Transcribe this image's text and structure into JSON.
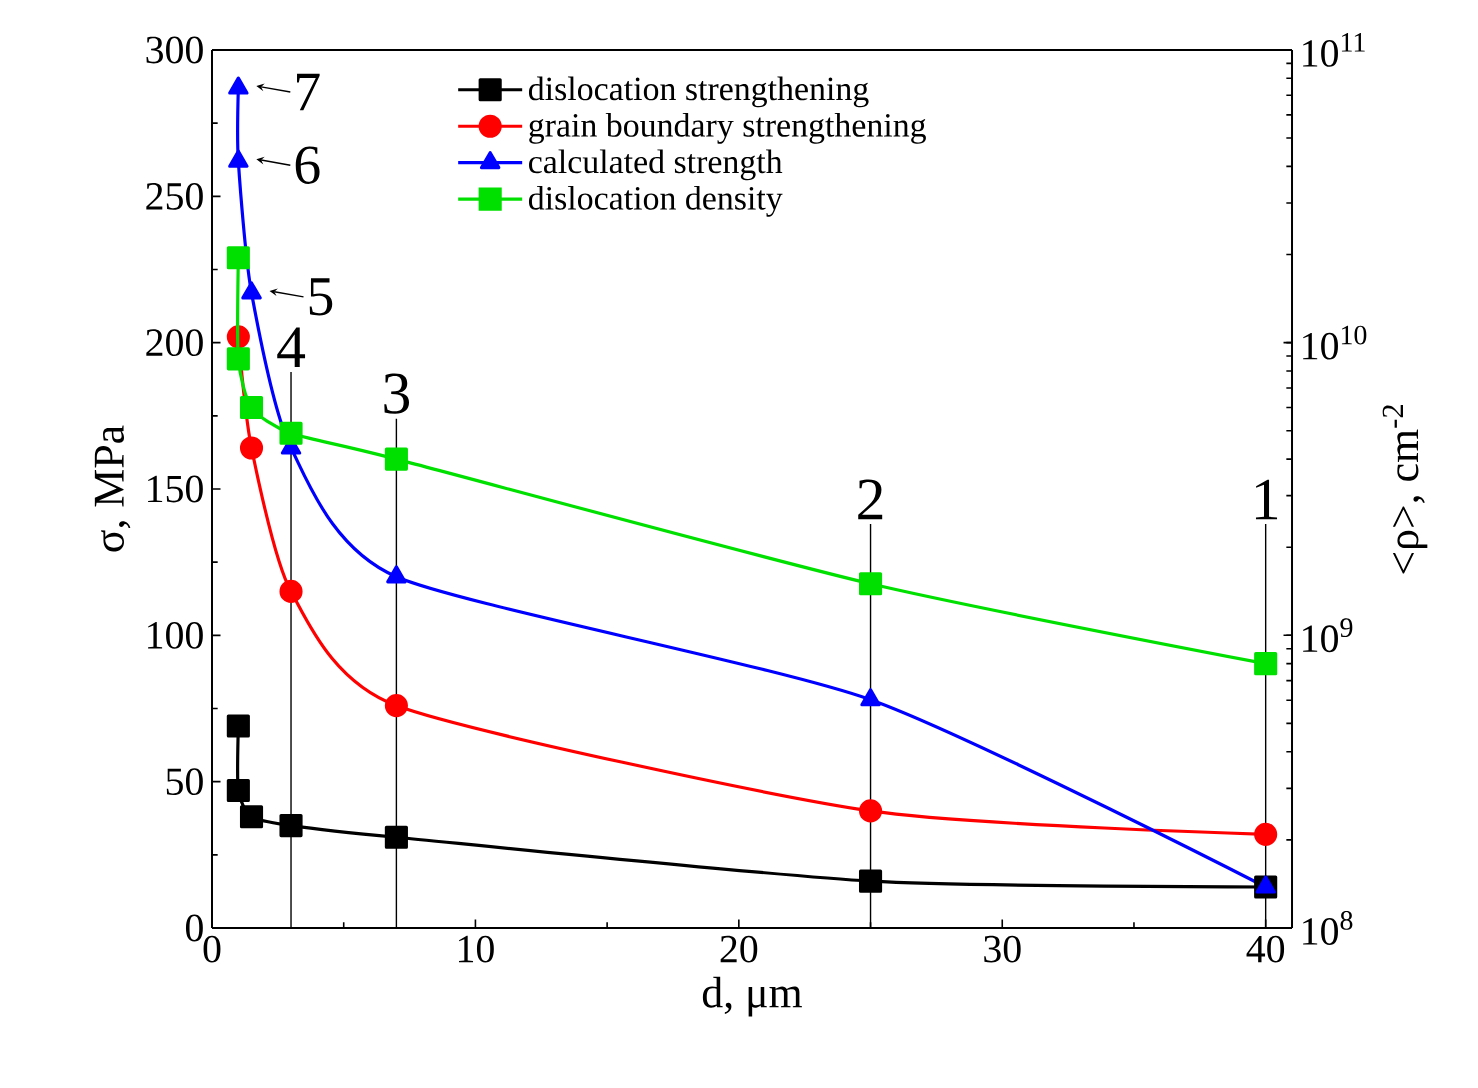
{
  "chart_data": {
    "type": "line",
    "xlabel": "d, μm",
    "ylabel": "σ, MPa",
    "y2label": "<ρ>, cm$^{-2}$",
    "xlim": [
      0,
      41
    ],
    "xticks": [
      0,
      10,
      20,
      30,
      40
    ],
    "ylim": [
      0,
      300
    ],
    "yticks": [
      0,
      50,
      100,
      150,
      200,
      250,
      300
    ],
    "y2lim": [
      100000000.0,
      100000000000.0
    ],
    "log": "y2",
    "y2ticks": [
      {
        "value": 100000000.0,
        "label": "10$^{8}$"
      },
      {
        "value": 1000000000.0,
        "label": "10$^{9}$"
      },
      {
        "value": 10000000000.0,
        "label": "10$^{10}$"
      },
      {
        "value": 100000000000.0,
        "label": "10$^{11}$"
      }
    ],
    "grid": false,
    "legend": "top",
    "line_style": "solid",
    "series": [
      {
        "name": "dislocation strengthening",
        "color": "#000000",
        "marker": "square",
        "x": [
          1,
          1,
          1.5,
          3,
          7,
          25,
          40
        ],
        "values": [
          69,
          47,
          38,
          35,
          31,
          16,
          14
        ]
      },
      {
        "name": "grain boundary strengthening",
        "color": "#ff0000",
        "marker": "circle",
        "x": [
          1,
          1.5,
          3,
          7,
          25,
          40
        ],
        "values": [
          202,
          164,
          115,
          76,
          40,
          32
        ]
      },
      {
        "name": "calculated strength",
        "color": "#0000ff",
        "marker": "triangle",
        "x": [
          1,
          1,
          1.5,
          3,
          7,
          25,
          40
        ],
        "values": [
          287,
          262,
          217,
          164,
          120,
          78,
          14
        ]
      },
      {
        "name": "dislocation density",
        "color": "#00e000",
        "marker": "square",
        "axis": "y2",
        "x": [
          1,
          1,
          1.5,
          3,
          7,
          25,
          40
        ],
        "values": [
          19500000000.0,
          8800000000.0,
          6000000000.0,
          4900000000.0,
          4000000000.0,
          1500000000.0,
          800000000.0
        ]
      }
    ],
    "ref_lines": [
      {
        "axis": "x",
        "value": 40,
        "color": "#000000"
      },
      {
        "axis": "x",
        "value": 25,
        "color": "#000000"
      },
      {
        "axis": "x",
        "value": 7,
        "color": "#000000"
      },
      {
        "axis": "x",
        "value": 3,
        "color": "#000000"
      }
    ],
    "annotations": [
      {
        "text": "1",
        "x": 40,
        "y": 138
      },
      {
        "text": "2",
        "x": 25,
        "y": 138
      },
      {
        "text": "3",
        "x": 7,
        "y": 174
      },
      {
        "text": "4",
        "x": 3,
        "y": 190
      },
      {
        "text": "5",
        "x": 1.5,
        "y": 217
      },
      {
        "text": "6",
        "x": 1,
        "y": 262
      },
      {
        "text": "7",
        "x": 1,
        "y": 287
      }
    ]
  }
}
